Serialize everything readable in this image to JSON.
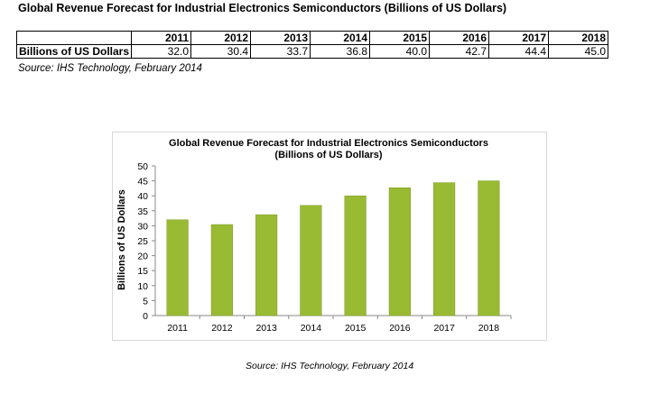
{
  "table": {
    "title": "Global Revenue Forecast for Industrial Electronics Semiconductors (Billions of US Dollars)",
    "row_label": "Billions of US Dollars",
    "years": [
      "2011",
      "2012",
      "2013",
      "2014",
      "2015",
      "2016",
      "2017",
      "2018"
    ],
    "values": [
      "32.0",
      "30.4",
      "33.7",
      "36.8",
      "40.0",
      "42.7",
      "44.4",
      "45.0"
    ]
  },
  "source_top": "Source: IHS Technology, February 2014",
  "source_bottom": "Source: IHS Technology, February 2014",
  "chart_data": {
    "type": "bar",
    "title": "Global Revenue Forecast for Industrial Electronics Semiconductors",
    "subtitle": "(Billions of US Dollars)",
    "xlabel": "",
    "ylabel": "Billions of US Dollars",
    "categories": [
      "2011",
      "2012",
      "2013",
      "2014",
      "2015",
      "2016",
      "2017",
      "2018"
    ],
    "values": [
      32.0,
      30.4,
      33.7,
      36.8,
      40.0,
      42.7,
      44.4,
      45.0
    ],
    "ylim": [
      0,
      50
    ],
    "yticks": [
      0,
      5,
      10,
      15,
      20,
      25,
      30,
      35,
      40,
      45,
      50
    ],
    "grid": false,
    "legend": "none",
    "bar_color": "#99bb33",
    "bar_edge_color": "#7a9a22"
  }
}
